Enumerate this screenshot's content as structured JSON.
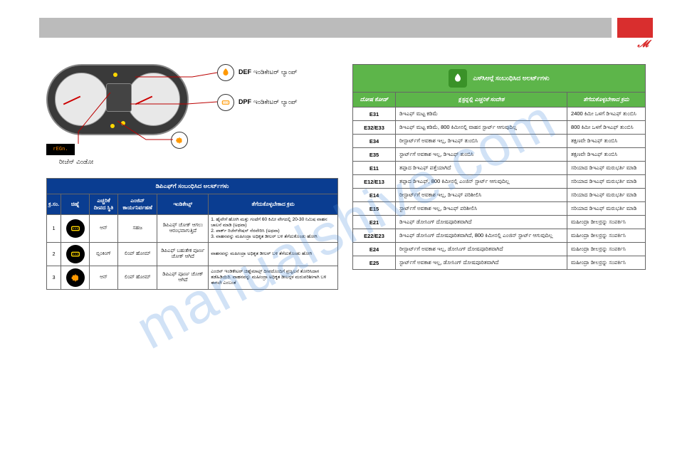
{
  "watermark": "manualshive.com",
  "brand": "Mahindra",
  "cluster": {
    "def_label": "DEF",
    "def_text": "ಇಂಡಿಕೇಟರ್ ಲ್ಯಾಂಪ್",
    "dpf_label": "DPF",
    "dpf_text": "ಇಂಡಿಕೇಟರ್ ಲ್ಯಾಂಪ್",
    "regen_disp": "rEGn.",
    "regen_text": "ರೀಜೆನ್ ವಿಂಡೋ"
  },
  "dpf_table": {
    "title": "ಡಿಪಿಎಫ್‍ಗೆ ಸಂಬಂಧಿಸಿದ ಅಲರ್ಟ್‍ಗಳು",
    "headers": [
      "ಕ್ರ.ಸಂ.",
      "ಚಿಹ್ನೆ",
      "ಎಚ್ಚರಿಕೆ ದೀಪದ ಸ್ಥಿತಿ",
      "ಎಂಜಿನ್ ಕಾರ್ಯನಿರ್ವಹಣೆ",
      "ಇಂಡಿಕೇಟ್ಸ್",
      "ತೆಗೆದುಕೊಳ್ಳಬೇಕಾದ ಕ್ರಮ"
    ],
    "rows": [
      {
        "sn": "1",
        "state": "ಆನ್",
        "op": "ಸಹಜ",
        "ind": "ಡಿಪಿಎಫ್ ಚೋಕ್ ಆಗಲು ಆರಂಭವಾಗುತ್ತಿದೆ",
        "action": "1. ಹೈವೇಗೆ ಹೋಗಿ ಮತ್ತು ಗಂಟೆಗೆ 60 ಕಿಮೀ ವೇಗದಲ್ಲಿ 20-30 ನಿಮಿಷ ವಾಹನ ಚಾಲನೆ ಮಾಡಿ (ಅಥವಾ)\n2. ಪಾರ್ಕ್ ರಿಜೆನ್‍ರೇಷನ್ ನೆರವೇರಿಸಿ (ಅಥವಾ)\n3. ವಾಹನವನ್ನು ಮಹೀಂದ್ರಾ ಅಧಿಕೃತ ಡೀಲರ್ ಬಳಿ ತೆಗೆದುಕೊಂಡು ಹೋಗಿ"
      },
      {
        "sn": "2",
        "state": "ಬ್ಲಿಂಕಿಂಗ್",
        "op": "ಲಿಂಪ್ ಹೋಮ್",
        "ind": "ಡಿಪಿಎಫ್ ಬಹುತೇಕ ಪೂರ್ಣ ಚೋಕ್ ಆಗಿದೆ",
        "action": "ವಾಹನವನ್ನು ಮಹೀಂದ್ರಾ ಅಧಿಕೃತ ಡೀಲರ್ ಬಳಿ ತೆಗೆದುಕೊಂಡು ಹೋಗಿ"
      },
      {
        "sn": "3",
        "state": "ಆನ್",
        "op": "ಲಿಂಪ್ ಹೋಮ್",
        "ind": "ಡಿಪಿಎಫ್ ಪೂರ್ಣ ಚೋಕ್ ಆಗಿದೆ",
        "action": "ಎಂಜಿನ್ ಇಂಡಿಕೇಟರ್ ಚಿಹ್ನೆಮಾಟ್ಸ್ ದೀಪದೊಂದಿಗೆ ಪ್ರಜ್ವಲನೆ ತೋರಿಸಿದಾಗ ತಡೆಹಿಡಿಯಿರಿ. ವಾಹನವನ್ನು ಮಹೀಂದ್ರಾ ಅಧಿಕೃತ ಡೀಲರ್‍ಗಳ ಮರುಪರಿಶೀಗಾಗಿ ಬಳಿ ಈಗಲೇ ಎಂಬಂತೆ"
      }
    ]
  },
  "scr_table": {
    "title": "ಎಸ್‍ಸಿಆರ್‍ಗೆ ಸಂಬಂಧಿಸಿದ ಅಲರ್ಟ್‍ಗಳು",
    "headers": [
      "ದೋಷ ಕೋಡ್",
      "ಕ್ಲಸ್ಟರ್‍ನಲ್ಲಿ ಎಚ್ಚರಿಕೆ ಸಂದೇಶ",
      "ತೆಗೆದುಕೊಳ್ಳಬೇಕಾದ ಕ್ರಮ"
    ],
    "rows": [
      {
        "code": "E31",
        "msg": "ಡಿಇಎಫ್ ಮಟ್ಟ ಕಡಿಮೆ",
        "act": "2400 ಕಿಮೀ ಒಳಗೆ ಡಿಇಎಫ್ ತುಂಬಿಸಿ"
      },
      {
        "code": "E32/E33",
        "msg": "ಡಿಇಎಫ್ ಮಟ್ಟ ಕಡಿಮೆ, 800 ಕಿಮೀನಲ್ಲಿ ವಾಹನ ಸ್ಟಾರ್ಟ್ ಆಗುವುದಿಲ್ಲ",
        "act": "800 ಕಿಮೀ ಒಳಗೆ ಡಿಇಎಫ್ ತುಂಬಿಸಿ"
      },
      {
        "code": "E34",
        "msg": "ರೀಸ್ಟಾರ್ಟ್‍ಗೆ ಅವಕಾಶ ಇಲ್ಲ, ಡಿಇಎಫ್ ತುಂಬಿಸಿ",
        "act": "ತಕ್ಷಣವೇ ಡಿಇಎಫ್ ತುಂಬಿಸಿ"
      },
      {
        "code": "E35",
        "msg": "ಸ್ಟಾರ್ಟ್‍ಗೆ ಅವಕಾಶ ಇಲ್ಲ, ಡಿಇಎಫ್ ತುಂಬಿಸಿ",
        "act": "ತಕ್ಷಣವೇ ಡಿಇಎಫ್ ತುಂಬಿಸಿ"
      },
      {
        "code": "E11",
        "msg": "ತಪ್ಪಾದ ಡಿಇಎಫ್ ಪತ್ತೆಯಾಗಿದೆ",
        "act": "ಸರಿಯಾದ ಡಿಇಎಫ್ ಮರುಭರ್ತಿ ಮಾಡಿ"
      },
      {
        "code": "E12/E13",
        "msg": "ತಪ್ಪಾದ ಡಿಇಎಫ್, 800 ಕಿಮೀನಲ್ಲಿ ಎಂಜಿನ್ ಸ್ಟಾರ್ಟ್ ಆಗುವುದಿಲ್ಲ",
        "act": "ಸರಿಯಾದ ಡಿಇಎಫ್ ಮರುಭರ್ತಿ ಮಾಡಿ"
      },
      {
        "code": "E14",
        "msg": "ರೀಸ್ಟಾರ್ಟ್‍ಗೆ ಅವಕಾಶ ಇಲ್ಲ, ಡಿಇಎಫ್ ಪರಿಶೀಲಿಸಿ",
        "act": "ಸರಿಯಾದ ಡಿಇಎಫ್ ಮರುಭರ್ತಿ ಮಾಡಿ"
      },
      {
        "code": "E15",
        "msg": "ಸ್ಟಾರ್ಟ್‍ಗೆ ಅವಕಾಶ ಇಲ್ಲ, ಡಿಇಎಫ್ ಪರಿಶೀಲಿಸಿ",
        "act": "ಸರಿಯಾದ ಡಿಇಎಫ್ ಮರುಭರ್ತಿ ಮಾಡಿ"
      },
      {
        "code": "E21",
        "msg": "ಡಿಇಎಫ್ ಡೋಸಿಂಗ್ ದೋಷಪೂರಿತವಾಗಿದೆ",
        "act": "ಮಹೀಂದ್ರಾ ಡೀಲರ್‍ರನ್ನು ಸಂಪರ್ಕಿಸಿ"
      },
      {
        "code": "E22/E23",
        "msg": "ಡಿಇಎಫ್ ಡೋಸಿಂಗ್ ದೋಷಪೂರಿತವಾಗಿದೆ, 800 ಕಿಮೀನಲ್ಲಿ ಎಂಜಿನ್ ಸ್ಟಾರ್ಟ್ ಆಗುವುದಿಲ್ಲ",
        "act": "ಮಹೀಂದ್ರಾ ಡೀಲರ್‍ರನ್ನು ಸಂಪರ್ಕಿಸಿ"
      },
      {
        "code": "E24",
        "msg": "ರೀಸ್ಟಾರ್ಟ್‍ಗೆ ಅವಕಾಶ ಇಲ್ಲ, ಡೋಸಿಂಗ್ ದೋಷಪೂರಿತವಾಗಿದೆ",
        "act": "ಮಹೀಂದ್ರಾ ಡೀಲರ್‍ರನ್ನು ಸಂಪರ್ಕಿಸಿ"
      },
      {
        "code": "E25",
        "msg": "ಸ್ಟಾರ್ಟ್‍ಗೆ ಅವಕಾಶ ಇಲ್ಲ, ಡೋಸಿಂಗ್ ದೋಷಪೂರಿತವಾಗಿದೆ",
        "act": "ಮಹೀಂದ್ರಾ ಡೀಲರ್‍ರನ್ನು ಸಂಪರ್ಕಿಸಿ"
      }
    ]
  }
}
